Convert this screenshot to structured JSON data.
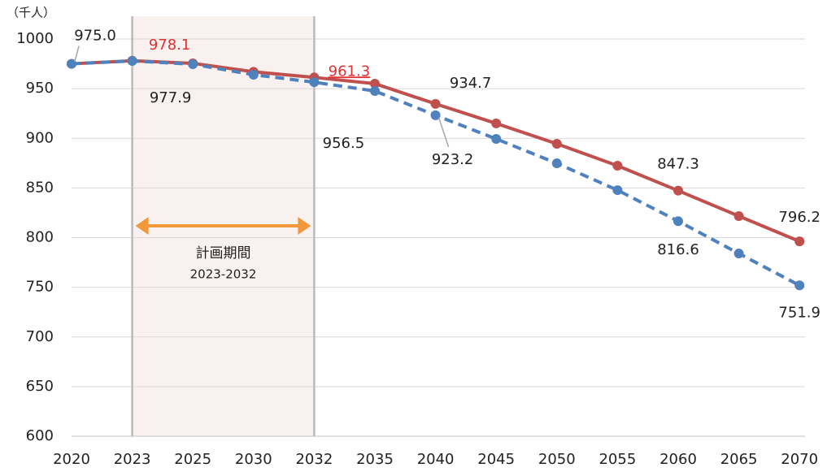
{
  "chart_data": {
    "type": "line",
    "unit_label": "（千人）",
    "categories": [
      "2020",
      "2023",
      "2025",
      "2030",
      "2032",
      "2035",
      "2040",
      "2045",
      "2050",
      "2055",
      "2060",
      "2065",
      "2070"
    ],
    "series": [
      {
        "color": "#c0504d",
        "dashed": false,
        "values": [
          975.0,
          978.1,
          975.5,
          967,
          961.3,
          955,
          934.7,
          915,
          894.5,
          872.4,
          847.3,
          821.7,
          796.2
        ],
        "value_labels": [
          null,
          "978.1",
          null,
          null,
          "961.3",
          null,
          "934.7",
          null,
          null,
          null,
          "847.3",
          null,
          "796.2"
        ]
      },
      {
        "color": "#4f81bd",
        "dashed": true,
        "values": [
          975.0,
          977.9,
          974.6,
          964,
          956.5,
          947.6,
          923.2,
          899.4,
          874.8,
          847.8,
          816.6,
          784,
          751.9
        ],
        "value_labels": [
          "975.0",
          "977.9",
          null,
          null,
          "956.5",
          null,
          "923.2",
          null,
          null,
          null,
          "816.6",
          null,
          "751.9"
        ]
      }
    ],
    "ylim": [
      600,
      1000
    ],
    "yticks": [
      600,
      650,
      700,
      750,
      800,
      850,
      900,
      950,
      1000
    ],
    "grid": true,
    "period": {
      "label": "計画期間",
      "range_label": "2023-2032",
      "color": "#f0983a",
      "fill": "#f9f1f0"
    }
  }
}
